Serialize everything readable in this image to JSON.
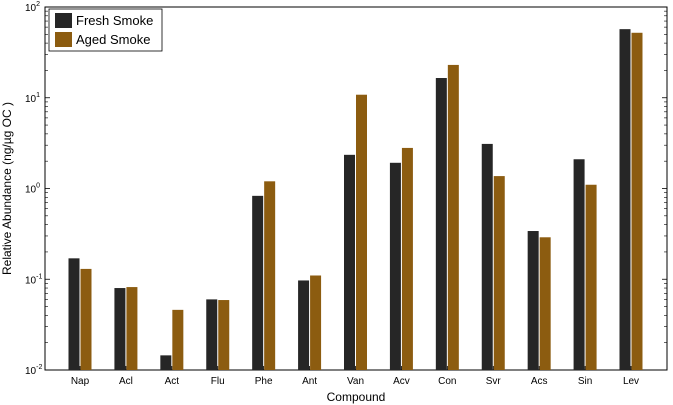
{
  "chart_data": {
    "type": "bar",
    "scale": "log",
    "title": "",
    "xlabel": "Compound",
    "ylabel": "Relative Abundance (ng/µg OC )",
    "ylim": [
      0.01,
      100
    ],
    "y_ticks": [
      {
        "value": 0.01,
        "base": "10",
        "exp": "-2"
      },
      {
        "value": 0.1,
        "base": "10",
        "exp": "-1"
      },
      {
        "value": 1,
        "base": "10",
        "exp": "0"
      },
      {
        "value": 10,
        "base": "10",
        "exp": "1"
      },
      {
        "value": 100,
        "base": "10",
        "exp": "2"
      }
    ],
    "categories": [
      "Nap",
      "Acl",
      "Act",
      "Flu",
      "Phe",
      "Ant",
      "Van",
      "Acv",
      "Con",
      "Svr",
      "Acs",
      "Sin",
      "Lev"
    ],
    "series": [
      {
        "name": "Fresh Smoke",
        "color": "#262626",
        "values": [
          0.17,
          0.08,
          0.0145,
          0.06,
          0.83,
          0.097,
          2.35,
          1.92,
          16.5,
          3.1,
          0.34,
          2.1,
          57
        ]
      },
      {
        "name": "Aged Smoke",
        "color": "#8c5c10",
        "values": [
          0.13,
          0.082,
          0.046,
          0.059,
          1.2,
          0.11,
          10.8,
          2.8,
          23,
          1.37,
          0.29,
          1.1,
          52
        ]
      }
    ],
    "legend_position": "top-left",
    "grid": false
  }
}
